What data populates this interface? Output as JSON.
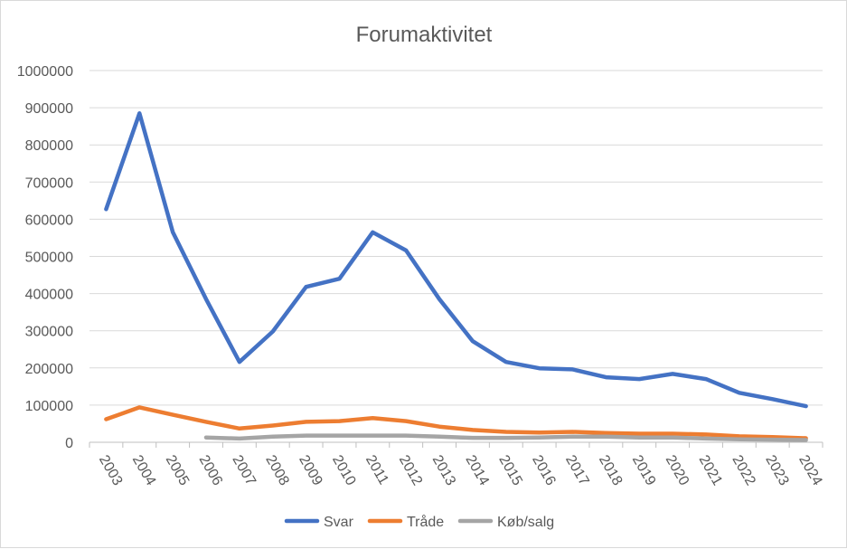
{
  "chart_data": {
    "type": "line",
    "title": "Forumaktivitet",
    "xlabel": "",
    "ylabel": "",
    "ylim": [
      0,
      1000000
    ],
    "yticks": [
      0,
      100000,
      200000,
      300000,
      400000,
      500000,
      600000,
      700000,
      800000,
      900000,
      1000000
    ],
    "ytick_labels": [
      "0",
      "100000",
      "200000",
      "300000",
      "400000",
      "500000",
      "600000",
      "700000",
      "800000",
      "900000",
      "1000000"
    ],
    "categories": [
      "2003",
      "2004",
      "2005",
      "2006",
      "2007",
      "2008",
      "2009",
      "2010",
      "2011",
      "2012",
      "2013",
      "2014",
      "2015",
      "2016",
      "2017",
      "2018",
      "2019",
      "2020",
      "2021",
      "2022",
      "2023",
      "2024"
    ],
    "grid": true,
    "legend_position": "bottom",
    "series": [
      {
        "name": "Svar",
        "color": "#4472c4",
        "values": [
          627000,
          885000,
          565000,
          385000,
          216000,
          298000,
          418000,
          440000,
          565000,
          516000,
          385000,
          272000,
          216000,
          199000,
          196000,
          175000,
          170000,
          184000,
          170000,
          133000,
          116000,
          97000
        ]
      },
      {
        "name": "Tråde",
        "color": "#ed7d31",
        "values": [
          62000,
          94000,
          74000,
          55000,
          37000,
          45000,
          55000,
          57000,
          65000,
          57000,
          42000,
          33000,
          28000,
          26000,
          28000,
          25000,
          23000,
          23000,
          21000,
          16000,
          14000,
          11000
        ]
      },
      {
        "name": "Køb/salg",
        "color": "#a5a5a5",
        "values": [
          null,
          null,
          null,
          13000,
          10000,
          15000,
          18000,
          18000,
          18000,
          18000,
          15000,
          12000,
          12000,
          13000,
          15000,
          15000,
          13000,
          13000,
          10000,
          8000,
          7000,
          6000
        ]
      }
    ]
  }
}
